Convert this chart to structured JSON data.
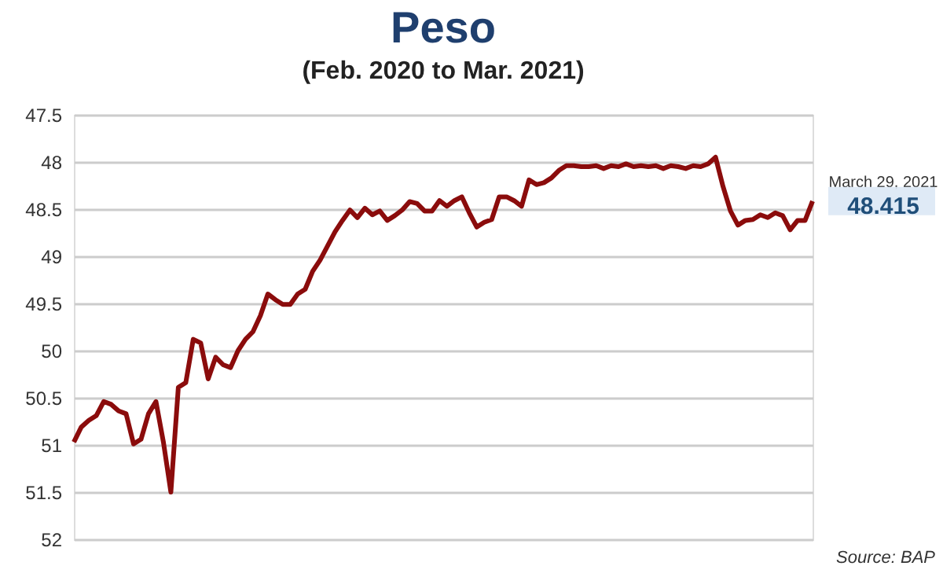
{
  "chart_data": {
    "type": "line",
    "title": "Peso",
    "subtitle": "(Feb. 2020 to Mar. 2021)",
    "categories": [
      null,
      null,
      null,
      null,
      null,
      null,
      null,
      null,
      null,
      null,
      null,
      null,
      null,
      null,
      null,
      null,
      null,
      null,
      null,
      null,
      null,
      null,
      null,
      null,
      null,
      null,
      null,
      null,
      null,
      null,
      null,
      null,
      null,
      null,
      null,
      null,
      null,
      null,
      null,
      null,
      null,
      null,
      null,
      null,
      null,
      null,
      null,
      null,
      null,
      null,
      null,
      null,
      null,
      null,
      null,
      null,
      null,
      null,
      null,
      null,
      null,
      null,
      null,
      null,
      null,
      null,
      null,
      null,
      null,
      null,
      null,
      null,
      null,
      null,
      null,
      null,
      null,
      null,
      null,
      null,
      null,
      null,
      null,
      null,
      null,
      null,
      null,
      null,
      null,
      null,
      null,
      null,
      null,
      null,
      null,
      null,
      null,
      null,
      null,
      null
    ],
    "series": [
      {
        "color": "#8b0c0c",
        "values": [
          50.97,
          50.81,
          50.74,
          50.69,
          50.54,
          50.57,
          50.64,
          50.67,
          50.99,
          50.94,
          50.67,
          50.54,
          50.97,
          51.5,
          50.39,
          50.34,
          49.88,
          49.92,
          50.3,
          50.07,
          50.15,
          50.18,
          50.0,
          49.88,
          49.8,
          49.63,
          49.4,
          49.46,
          49.51,
          49.51,
          49.4,
          49.35,
          49.16,
          49.04,
          48.89,
          48.74,
          48.62,
          48.51,
          48.59,
          48.49,
          48.56,
          48.52,
          48.62,
          48.57,
          48.51,
          48.42,
          48.44,
          48.52,
          48.52,
          48.41,
          48.47,
          48.41,
          48.37,
          48.54,
          48.69,
          48.64,
          48.61,
          48.37,
          48.37,
          48.41,
          48.47,
          48.19,
          48.24,
          48.22,
          48.17,
          48.09,
          48.04,
          48.04,
          48.05,
          48.05,
          48.04,
          48.07,
          48.04,
          48.05,
          48.02,
          48.05,
          48.04,
          48.05,
          48.04,
          48.07,
          48.04,
          48.05,
          48.07,
          48.04,
          48.05,
          48.02,
          47.95,
          48.26,
          48.52,
          48.67,
          48.62,
          48.61,
          48.56,
          48.59,
          48.54,
          48.57,
          48.72,
          48.62,
          48.62,
          48.415
        ]
      }
    ],
    "ylim": [
      52,
      47.5
    ],
    "yticks": [
      47.5,
      48,
      48.5,
      49,
      49.5,
      50,
      50.5,
      51,
      51.5,
      52
    ],
    "grid": "y",
    "tick_labels": "y",
    "annotations": [
      "March 29, 2021",
      "48.415",
      "Source: BAP"
    ]
  }
}
